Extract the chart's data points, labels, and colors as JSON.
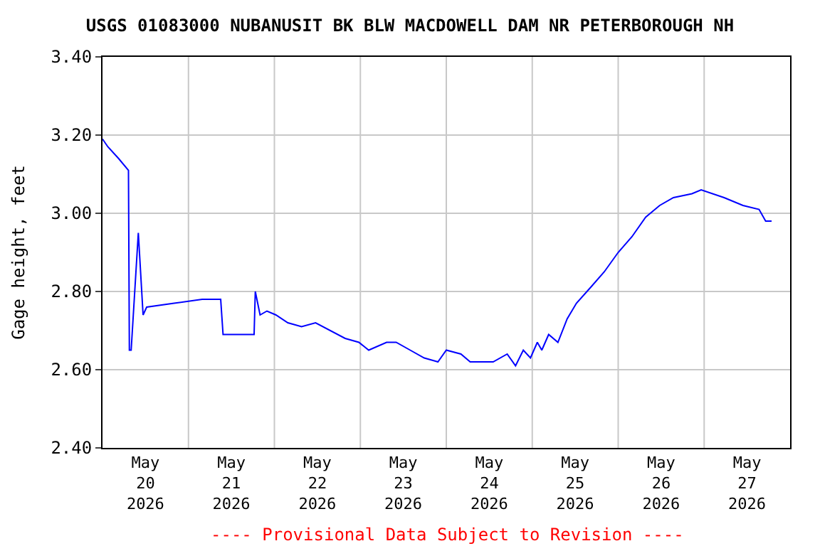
{
  "chart_data": {
    "type": "line",
    "title": "USGS 01083000 NUBANUSIT BK BLW MACDOWELL DAM NR PETERBOROUGH NH",
    "ylabel": "Gage height, feet",
    "annotations": [
      "---- Provisional Data Subject to Revision ----"
    ],
    "x": [
      "2026-05-20T00:00",
      "2026-05-20T01:30",
      "2026-05-20T04:30",
      "2026-05-20T07:15",
      "2026-05-20T07:30",
      "2026-05-20T08:00",
      "2026-05-20T10:00",
      "2026-05-20T11:20",
      "2026-05-20T12:20",
      "2026-05-20T20:00",
      "2026-05-21T03:50",
      "2026-05-21T09:00",
      "2026-05-21T09:40",
      "2026-05-21T18:20",
      "2026-05-21T18:40",
      "2026-05-21T20:00",
      "2026-05-21T21:55",
      "2026-05-22T00:25",
      "2026-05-22T03:45",
      "2026-05-22T07:35",
      "2026-05-22T11:30",
      "2026-05-22T19:45",
      "2026-05-22T23:35",
      "2026-05-23T02:20",
      "2026-05-23T07:20",
      "2026-05-23T10:00",
      "2026-05-23T13:55",
      "2026-05-23T17:50",
      "2026-05-23T21:40",
      "2026-05-24T00:00",
      "2026-05-24T04:05",
      "2026-05-24T06:40",
      "2026-05-24T13:05",
      "2026-05-24T17:00",
      "2026-05-24T19:20",
      "2026-05-24T21:30",
      "2026-05-24T23:30",
      "2026-05-25T01:25",
      "2026-05-25T02:40",
      "2026-05-25T04:35",
      "2026-05-25T07:10",
      "2026-05-25T09:45",
      "2026-05-25T12:20",
      "2026-05-25T16:15",
      "2026-05-25T20:05",
      "2026-05-26T00:00",
      "2026-05-26T03:50",
      "2026-05-26T07:40",
      "2026-05-26T11:35",
      "2026-05-26T15:25",
      "2026-05-26T20:35",
      "2026-05-26T23:10",
      "2026-05-27T05:35",
      "2026-05-27T10:50",
      "2026-05-27T15:20",
      "2026-05-27T17:10",
      "2026-05-27T18:50"
    ],
    "series": [
      {
        "color": "#0000ff",
        "values": [
          3.19,
          3.17,
          3.14,
          3.11,
          2.65,
          2.65,
          2.95,
          2.74,
          2.76,
          2.77,
          2.78,
          2.78,
          2.69,
          2.69,
          2.8,
          2.74,
          2.75,
          2.74,
          2.72,
          2.71,
          2.72,
          2.68,
          2.67,
          2.65,
          2.67,
          2.67,
          2.65,
          2.63,
          2.62,
          2.65,
          2.64,
          2.62,
          2.62,
          2.64,
          2.61,
          2.65,
          2.63,
          2.67,
          2.65,
          2.69,
          2.67,
          2.73,
          2.77,
          2.81,
          2.85,
          2.9,
          2.94,
          2.99,
          3.02,
          3.04,
          3.05,
          3.06,
          3.04,
          3.02,
          3.01,
          2.98,
          2.98
        ]
      }
    ],
    "xlim": [
      "2026-05-20T00:00",
      "2026-05-28T00:00"
    ],
    "xticks": [
      {
        "value": "2026-05-20T12:00",
        "label": "May\n20\n2026"
      },
      {
        "value": "2026-05-21T00:00",
        "label": null
      },
      {
        "value": "2026-05-21T12:00",
        "label": "May\n21\n2026"
      },
      {
        "value": "2026-05-22T00:00",
        "label": null
      },
      {
        "value": "2026-05-22T12:00",
        "label": "May\n22\n2026"
      },
      {
        "value": "2026-05-23T00:00",
        "label": null
      },
      {
        "value": "2026-05-23T12:00",
        "label": "May\n23\n2026"
      },
      {
        "value": "2026-05-24T00:00",
        "label": null
      },
      {
        "value": "2026-05-24T12:00",
        "label": "May\n24\n2026"
      },
      {
        "value": "2026-05-25T00:00",
        "label": null
      },
      {
        "value": "2026-05-25T12:00",
        "label": "May\n25\n2026"
      },
      {
        "value": "2026-05-26T00:00",
        "label": null
      },
      {
        "value": "2026-05-26T12:00",
        "label": "May\n26\n2026"
      },
      {
        "value": "2026-05-27T00:00",
        "label": null
      },
      {
        "value": "2026-05-27T12:00",
        "label": "May\n27\n2026"
      }
    ],
    "ylim": [
      2.4,
      3.4
    ],
    "yticks": [
      {
        "value": 2.4,
        "label": "2.40"
      },
      {
        "value": 2.6,
        "label": "2.60"
      },
      {
        "value": 2.8,
        "label": "2.80"
      },
      {
        "value": 3.0,
        "label": "3.00"
      },
      {
        "value": 3.2,
        "label": "3.20"
      },
      {
        "value": 3.4,
        "label": "3.40"
      }
    ],
    "grid": true,
    "legend": false
  }
}
